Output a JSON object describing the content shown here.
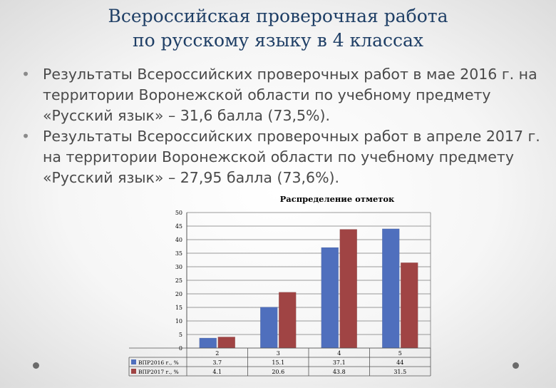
{
  "slide": {
    "title_line1": "Всероссийская проверочная работа",
    "title_line2": "по русскому языку в 4 классах",
    "bullets": [
      "Результаты Всероссийских проверочных работ в мае 2016 г. на территории Воронежской области по учебному предмету «Русский язык» – 31,6 балла (73,5%).",
      "Результаты Всероссийских проверочных работ в апреле 2017 г. на территории Воронежской области по учебному предмету «Русский язык» – 27,95 балла (73,6%)."
    ],
    "bullet_symbol": "•"
  },
  "chart_data": {
    "type": "bar",
    "title": "Распределение отметок",
    "categories": [
      "2",
      "3",
      "4",
      "5"
    ],
    "series": [
      {
        "name": "ВПР2016 г., %",
        "values": [
          3.7,
          15.1,
          37.1,
          44
        ],
        "labels": [
          "3.7",
          "15.1",
          "37.1",
          "44"
        ],
        "color": "#4f6fbd"
      },
      {
        "name": "ВПР2017 г., %",
        "values": [
          4.1,
          20.6,
          43.8,
          31.5
        ],
        "labels": [
          "4.1",
          "20.6",
          "43.8",
          "31.5"
        ],
        "color": "#a04444"
      }
    ],
    "ylim": [
      0,
      50
    ],
    "yticks": [
      "0",
      "5",
      "10",
      "15",
      "20",
      "25",
      "30",
      "35",
      "40",
      "45",
      "50"
    ],
    "grid": true,
    "legend": "data-table"
  }
}
